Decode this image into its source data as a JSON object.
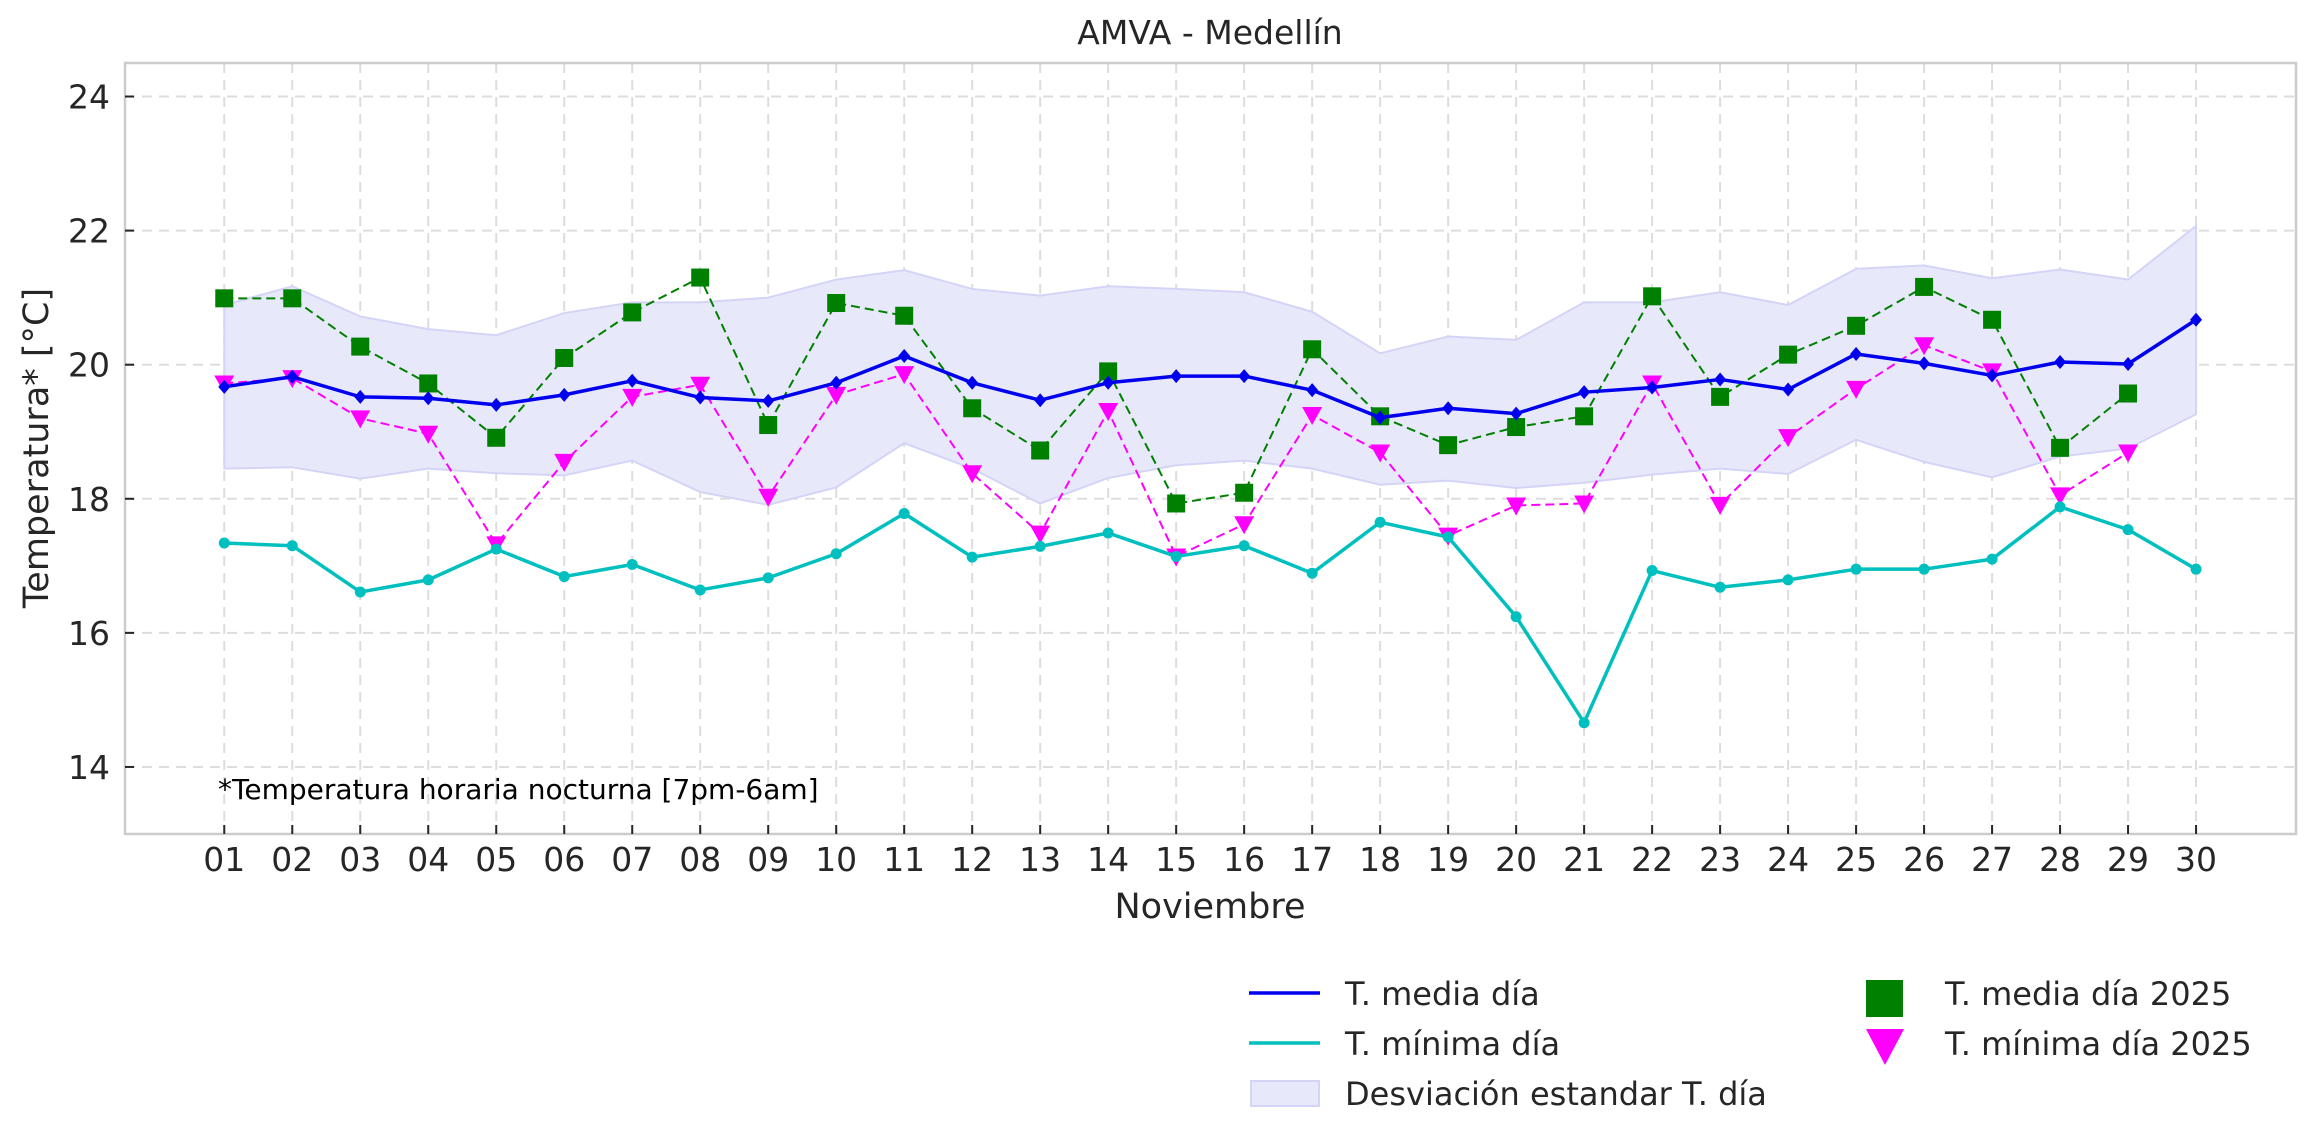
{
  "chart_data": {
    "type": "line",
    "title": "AMVA - Medellín",
    "xlabel": "Noviembre",
    "ylabel": "Temperatura* [°C]",
    "annotation": "*Temperatura horaria nocturna [7pm-6am]",
    "ylim": [
      13,
      24.5
    ],
    "xlim": [
      -0.46,
      31.47
    ],
    "yticks": [
      14,
      16,
      18,
      20,
      22,
      24
    ],
    "ytick_labels": [
      "14",
      "16",
      "18",
      "20",
      "22",
      "24"
    ],
    "categories": [
      "01",
      "02",
      "03",
      "04",
      "05",
      "06",
      "07",
      "08",
      "09",
      "10",
      "11",
      "12",
      "13",
      "14",
      "15",
      "16",
      "17",
      "18",
      "19",
      "20",
      "21",
      "22",
      "23",
      "24",
      "25",
      "26",
      "27",
      "28",
      "29",
      "30"
    ],
    "x": [
      1,
      2,
      3,
      4,
      5,
      6,
      7,
      8,
      9,
      10,
      11,
      12,
      13,
      14,
      15,
      16,
      17,
      18,
      19,
      20,
      21,
      22,
      23,
      24,
      25,
      26,
      27,
      28,
      29,
      30
    ],
    "grid": true,
    "legend_position": "bottom-right, outside below axes, 2 columns",
    "band": {
      "name": "Desviación estandar T. día",
      "color": "#e8e8fb",
      "edge_color": "#d4d4f7",
      "lower": [
        18.45,
        18.47,
        18.3,
        18.45,
        18.38,
        18.35,
        18.57,
        18.1,
        17.91,
        18.17,
        18.83,
        18.45,
        17.93,
        18.31,
        18.5,
        18.57,
        18.45,
        18.21,
        18.27,
        18.16,
        18.24,
        18.36,
        18.45,
        18.37,
        18.88,
        18.55,
        18.32,
        18.63,
        18.75,
        19.26
      ],
      "upper": [
        20.89,
        21.17,
        20.72,
        20.53,
        20.44,
        20.77,
        20.93,
        20.93,
        21.0,
        21.27,
        21.41,
        21.13,
        21.03,
        21.17,
        21.13,
        21.08,
        20.79,
        20.17,
        20.42,
        20.37,
        20.93,
        20.93,
        21.08,
        20.89,
        21.43,
        21.48,
        21.29,
        21.42,
        21.27,
        22.07
      ]
    },
    "series": [
      {
        "name": "T. media día",
        "color": "#0000ee",
        "style": "solid",
        "marker": "diamond",
        "values": [
          19.67,
          19.82,
          19.52,
          19.5,
          19.4,
          19.55,
          19.76,
          19.51,
          19.46,
          19.73,
          20.13,
          19.73,
          19.47,
          19.73,
          19.83,
          19.83,
          19.62,
          19.21,
          19.35,
          19.27,
          19.59,
          19.66,
          19.78,
          19.63,
          20.16,
          20.02,
          19.84,
          20.04,
          20.01,
          20.67
        ]
      },
      {
        "name": "T. mínima día",
        "color": "#00bfbf",
        "style": "solid",
        "marker": "circle",
        "values": [
          17.34,
          17.3,
          16.61,
          16.79,
          17.25,
          16.84,
          17.02,
          16.64,
          16.82,
          17.18,
          17.78,
          17.13,
          17.29,
          17.49,
          17.14,
          17.3,
          16.89,
          17.65,
          17.43,
          16.24,
          14.66,
          16.93,
          16.68,
          16.79,
          16.95,
          16.95,
          17.1,
          17.88,
          17.54,
          16.95
        ]
      },
      {
        "name": "T. media día 2025",
        "color": "#008000",
        "style": "dashed",
        "marker": "square",
        "values": [
          20.99,
          20.99,
          20.27,
          19.72,
          18.91,
          20.1,
          20.78,
          21.3,
          19.1,
          20.92,
          20.73,
          19.35,
          18.72,
          19.9,
          17.93,
          18.09,
          20.23,
          19.23,
          18.8,
          19.07,
          19.23,
          21.02,
          19.52,
          20.15,
          20.58,
          21.16,
          20.67,
          18.76,
          19.57,
          null
        ]
      },
      {
        "name": "T. mínima día 2025",
        "color": "#ff00ff",
        "style": "dashed",
        "marker": "triangle-down",
        "values": [
          19.72,
          19.8,
          19.2,
          18.97,
          17.32,
          18.55,
          19.52,
          19.7,
          18.03,
          19.55,
          19.86,
          18.38,
          17.48,
          19.31,
          17.14,
          17.62,
          19.25,
          18.69,
          17.45,
          17.9,
          17.93,
          19.72,
          17.91,
          18.92,
          19.64,
          20.29,
          19.9,
          18.05,
          18.69,
          null
        ]
      }
    ]
  }
}
